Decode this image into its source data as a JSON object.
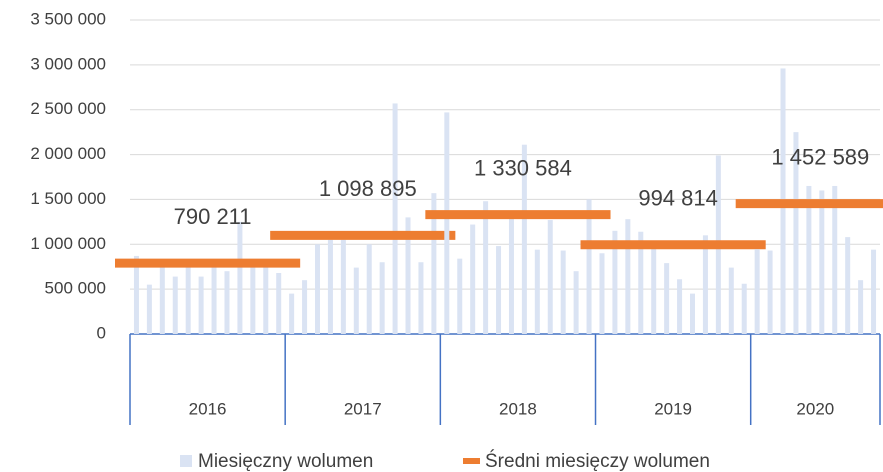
{
  "chart_data": {
    "type": "bar-with-averages",
    "yticks": [
      0,
      {
        "value": 500000,
        "label": "500 000"
      },
      {
        "value": 1000000,
        "label": "1 000 000"
      },
      {
        "value": 1500000,
        "label": "1 500 000"
      },
      {
        "value": 2000000,
        "label": "2 000 000"
      },
      {
        "value": 2500000,
        "label": "2 500 000"
      },
      {
        "value": 3000000,
        "label": "3 000 000"
      },
      {
        "value": 3500000,
        "label": "3 500 000"
      }
    ],
    "ylim": [
      0,
      3500000
    ],
    "grid": true,
    "series": [
      {
        "name": "Miesięczny wolumen",
        "color": "#dae3f3"
      },
      {
        "name": "Średni miesięczy wolumen",
        "color": "#ed7d31"
      }
    ],
    "groups": [
      {
        "label": "2016",
        "values": [
          870000,
          550000,
          760000,
          640000,
          760000,
          640000,
          760000,
          700000,
          1250000,
          750000,
          760000,
          680000
        ],
        "average": 790211,
        "average_label": "790 211"
      },
      {
        "label": "2017",
        "values": [
          450000,
          600000,
          1000000,
          1050000,
          1050000,
          740000,
          1000000,
          800000,
          2570000,
          1300000,
          800000,
          1570000
        ],
        "average": 1098895,
        "average_label": "1 098 895"
      },
      {
        "label": "2018",
        "values": [
          2470000,
          840000,
          1220000,
          1480000,
          980000,
          1300000,
          2110000,
          940000,
          1270000,
          930000,
          700000,
          1500000
        ],
        "average": 1330584,
        "average_label": "1 330 584"
      },
      {
        "label": "2019",
        "values": [
          900000,
          1150000,
          1280000,
          1140000,
          1000000,
          790000,
          610000,
          450000,
          1100000,
          1990000,
          740000,
          560000
        ],
        "average": 994814,
        "average_label": "994 814"
      },
      {
        "label": "2020",
        "values": [
          945000,
          930000,
          2960000,
          2250000,
          1650000,
          1600000,
          1650000,
          1080000,
          600000,
          940000
        ],
        "average": 1452589,
        "average_label": "1 452 589"
      }
    ]
  }
}
